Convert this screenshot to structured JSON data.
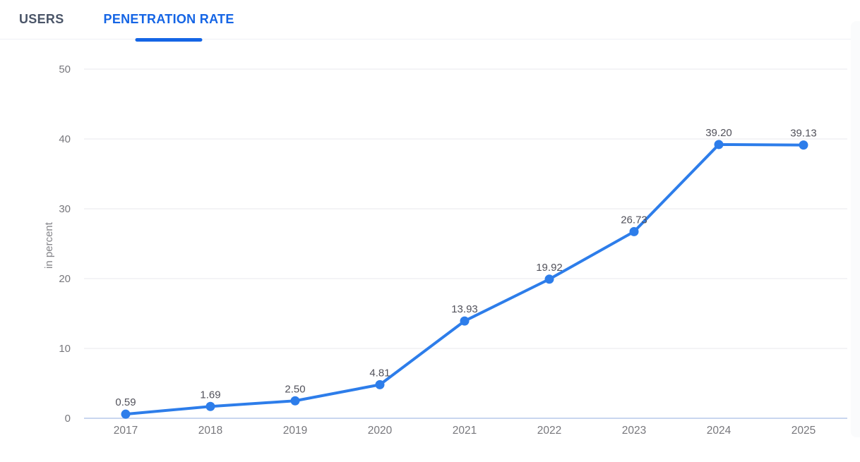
{
  "tabs": {
    "users": {
      "label": "USERS",
      "active": false
    },
    "penetration_rate": {
      "label": "PENETRATION RATE",
      "active": true
    }
  },
  "chart_data": {
    "type": "line",
    "series_name": "Penetration rate",
    "x": [
      2017,
      2018,
      2019,
      2020,
      2021,
      2022,
      2023,
      2024,
      2025
    ],
    "values": [
      0.59,
      1.69,
      2.5,
      4.81,
      13.93,
      19.92,
      26.73,
      39.2,
      39.13
    ],
    "point_labels": [
      "0.59",
      "1.69",
      "2.50",
      "4.81",
      "13.93",
      "19.92",
      "26.73",
      "39.20",
      "39.13"
    ],
    "xlabel": "",
    "ylabel": "in percent",
    "ylim": [
      0,
      50
    ],
    "yticks": [
      0,
      10,
      20,
      30,
      40,
      50
    ],
    "grid": true,
    "legend": false,
    "colors": {
      "line": "#2d7dea",
      "point": "#2d7dea",
      "grid_line": "#e9eaec",
      "axis_line": "#c9d6ef",
      "tick_label": "#77777c",
      "axis_title": "#85858a",
      "point_label": "#52525b",
      "tab_active": "#1565e5",
      "tab_inactive": "#4a5568",
      "separator": "#eef0f5"
    }
  }
}
